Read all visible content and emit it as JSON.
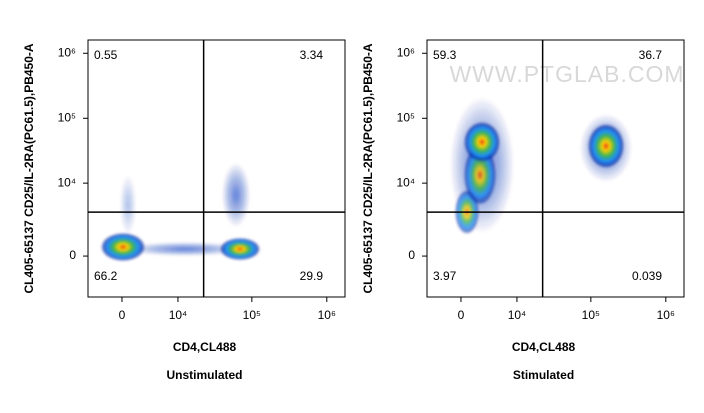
{
  "chart_data": [
    {
      "type": "scatter",
      "caption": "Unstimulated",
      "x_label": "CD4,CL488",
      "y_label": "CL405-65137 CD25/IL-2RA(PC61.5),PB450-A",
      "scale": "biexponential",
      "xlim": [
        -4600,
        1750000
      ],
      "ylim": [
        -3060,
        1600000
      ],
      "xticks": [
        0,
        {
          "value": 10000,
          "label": "10⁴"
        },
        {
          "value": 100000,
          "label": "10⁵"
        },
        {
          "value": 1000000,
          "label": "10⁶"
        }
      ],
      "yticks": [
        0,
        {
          "value": 10000,
          "label": "10⁴"
        },
        {
          "value": 100000,
          "label": "10⁵"
        },
        {
          "value": 1000000,
          "label": "10⁶"
        }
      ],
      "gate": {
        "x": 22600,
        "y": 3450
      },
      "quadrants": {
        "upper_left": 0.55,
        "upper_right": 3.34,
        "lower_left": 66.2,
        "lower_right": 29.9
      }
    },
    {
      "type": "scatter",
      "caption": "Stimulated",
      "x_label": "CD4,CL488",
      "y_label": "CL405-65137 CD25/IL-2RA(PC61.5),PB450-A",
      "scale": "biexponential",
      "watermark": "WWW.PTGLAB.COM",
      "xlim": [
        -4600,
        1750000
      ],
      "ylim": [
        -3060,
        1600000
      ],
      "xticks": [
        0,
        {
          "value": 10000,
          "label": "10⁴"
        },
        {
          "value": 100000,
          "label": "10⁵"
        },
        {
          "value": 1000000,
          "label": "10⁶"
        }
      ],
      "yticks": [
        0,
        {
          "value": 10000,
          "label": "10⁴"
        },
        {
          "value": 100000,
          "label": "10⁵"
        },
        {
          "value": 1000000,
          "label": "10⁶"
        }
      ],
      "gate": {
        "x": 22600,
        "y": 3450
      },
      "quadrants": {
        "upper_left": 59.3,
        "upper_right": 36.7,
        "lower_left": 3.97,
        "lower_right": 0.039
      }
    }
  ]
}
